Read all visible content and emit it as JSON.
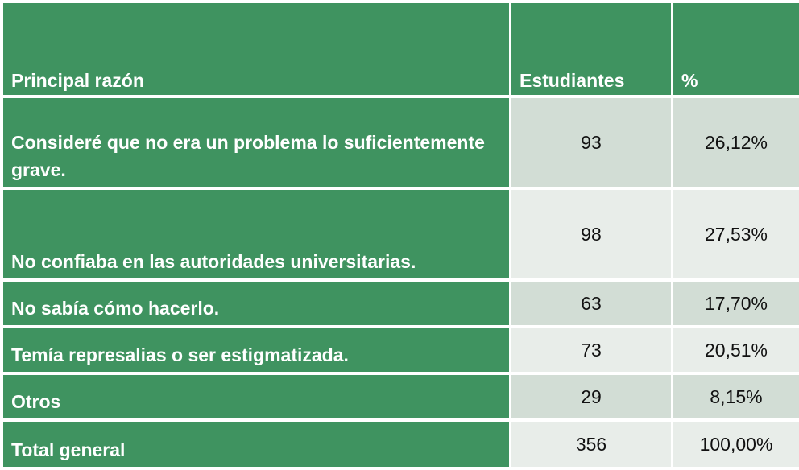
{
  "table": {
    "headers": [
      "Principal razón",
      "Estudiantes",
      "%"
    ],
    "rows": [
      {
        "reason": "Consideré que no era un problema lo suficientemente grave.",
        "students": "93",
        "percent": "26,12%"
      },
      {
        "reason": "No confiaba en las autoridades universitarias.",
        "students": "98",
        "percent": "27,53%"
      },
      {
        "reason": "No sabía cómo hacerlo.",
        "students": "63",
        "percent": "17,70%"
      },
      {
        "reason": "Temía represalias o ser estigmatizada.",
        "students": "73",
        "percent": "20,51%"
      },
      {
        "reason": "Otros",
        "students": "29",
        "percent": "8,15%"
      },
      {
        "reason": "Total general",
        "students": "356",
        "percent": "100,00%"
      }
    ]
  },
  "colors": {
    "header_green": "#3f9360",
    "row_shade_dark": "#d2ddd5",
    "row_shade_light": "#e8ede9"
  }
}
